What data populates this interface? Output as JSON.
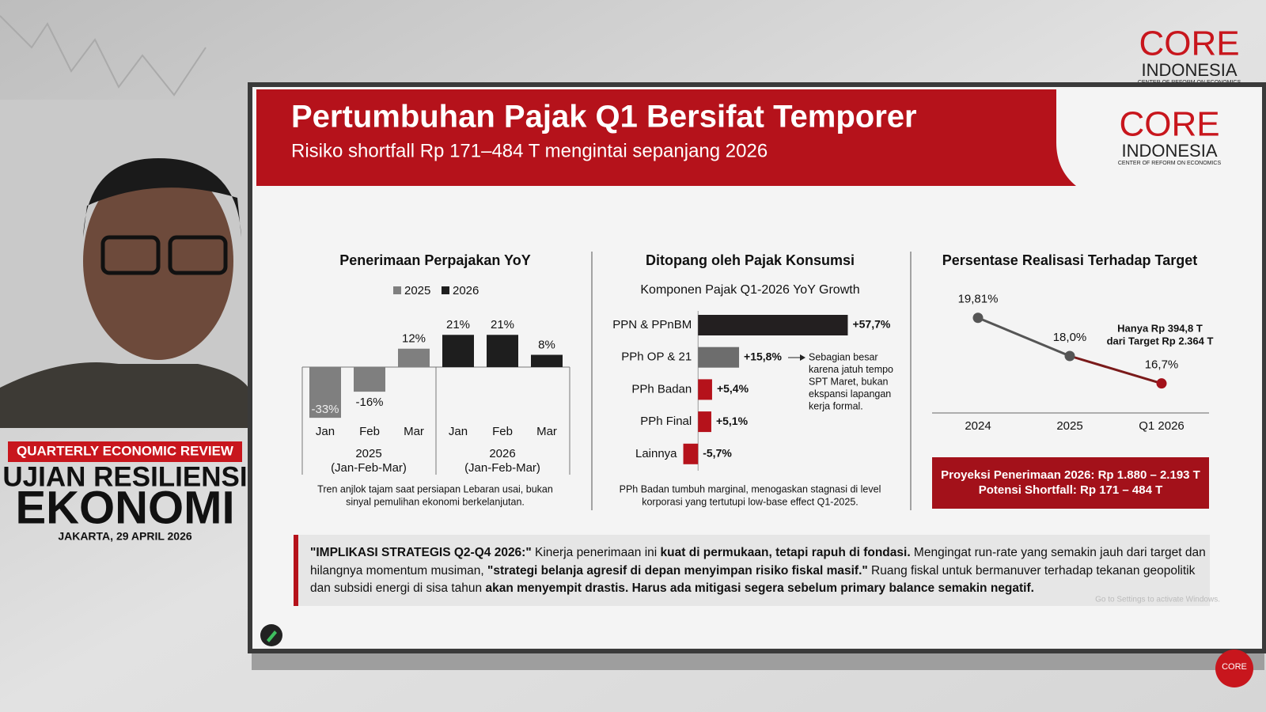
{
  "broadcast": {
    "segment": "QUARTERLY ECONOMIC REVIEW",
    "title_line1": "UJIAN RESILIENSI",
    "title_line2": "EKONOMI",
    "dateline": "JAKARTA, 29 APRIL 2026"
  },
  "logo": {
    "name": "CORE",
    "sub": "INDONESIA",
    "tagline": "CENTER OF REFORM ON ECONOMICS"
  },
  "slide": {
    "title": "Pertumbuhan Pajak Q1 Bersifat Temporer",
    "subtitle": "Risiko shortfall Rp 171–484 T mengintai sepanjang 2026",
    "implication": [
      {
        "text": "\"IMPLIKASI STRATEGIS Q2-Q4 2026:\"",
        "bold": true
      },
      {
        "text": " Kinerja penerimaan ini ",
        "bold": false
      },
      {
        "text": "kuat di permukaan, tetapi rapuh di fondasi.",
        "bold": true
      },
      {
        "text": " Mengingat run-rate yang semakin jauh dari target dan hilangnya momentum musiman, ",
        "bold": false
      },
      {
        "text": "\"strategi belanja agresif di depan menyimpan risiko fiskal masif.\"",
        "bold": true
      },
      {
        "text": " Ruang fiskal untuk bermanuver terhadap tekanan geopolitik dan subsidi energi di sisa tahun ",
        "bold": false
      },
      {
        "text": "akan menyempit drastis. Harus ada mitigasi segera sebelum primary balance semakin negatif.",
        "bold": true
      }
    ],
    "watermark": "Go to Settings to activate Windows."
  },
  "chart_data": [
    {
      "type": "bar",
      "title": "Penerimaan Perpajakan YoY",
      "categories": [
        "Jan",
        "Feb",
        "Mar"
      ],
      "period_label": "(Jan-Feb-Mar)",
      "series": [
        {
          "name": "2025",
          "color": "#7f7f7f",
          "values": [
            -33,
            -16,
            12
          ],
          "value_labels": [
            "-33%",
            "-16%",
            "12%"
          ]
        },
        {
          "name": "2026",
          "color": "#1e1e1e",
          "values": [
            21,
            21,
            8
          ],
          "value_labels": [
            "21%",
            "21%",
            "8%"
          ]
        }
      ],
      "ylim": [
        -35,
        25
      ],
      "note": [
        "Tren anjlok tajam saat persiapan Lebaran usai, bukan",
        "sinyal pemulihan ekonomi berkelanjutan."
      ]
    },
    {
      "type": "hbar",
      "title": "Ditopang oleh Pajak Konsumsi",
      "subtitle": "Komponen Pajak Q1-2026 YoY Growth",
      "categories": [
        "PPN & PPnBM",
        "PPh OP & 21",
        "PPh Badan",
        "PPh Final",
        "Lainnya"
      ],
      "values": [
        57.7,
        15.8,
        5.4,
        5.1,
        -5.7
      ],
      "value_labels": [
        "+57,7%",
        "+15,8%",
        "+5,4%",
        "+5,1%",
        "-5,7%"
      ],
      "colors": [
        "#231f20",
        "#6d6d6d",
        "#b5121b",
        "#b5121b",
        "#b5121b"
      ],
      "xlim": [
        -8,
        60
      ],
      "annotation": [
        "Sebagian besar",
        "karena jatuh tempo",
        "SPT Maret, bukan",
        "ekspansi lapangan",
        "kerja formal."
      ],
      "note": [
        "PPh Badan tumbuh marginal, menogaskan stagnasi di level",
        "korporasi yang tertutupi low-base effect Q1-2025."
      ]
    },
    {
      "type": "line",
      "title": "Persentase Realisasi Terhadap Target",
      "categories": [
        "2024",
        "2025",
        "Q1 2026"
      ],
      "values": [
        19.81,
        18.0,
        16.7
      ],
      "value_labels": [
        "19,81%",
        "18,0%",
        "16,7%"
      ],
      "colors": [
        "#555555",
        "#555555",
        "#a3111a"
      ],
      "line_colors": [
        "#555555",
        "#7a1a1a"
      ],
      "ylim": [
        15,
        21
      ],
      "annotation": [
        "Hanya Rp 394,8 T",
        "dari Target Rp 2.364 T"
      ],
      "callout": [
        "Proyeksi Penerimaan 2026: Rp 1.880 – 2.193 T",
        "Potensi Shortfall: Rp 171 – 484 T"
      ]
    }
  ]
}
